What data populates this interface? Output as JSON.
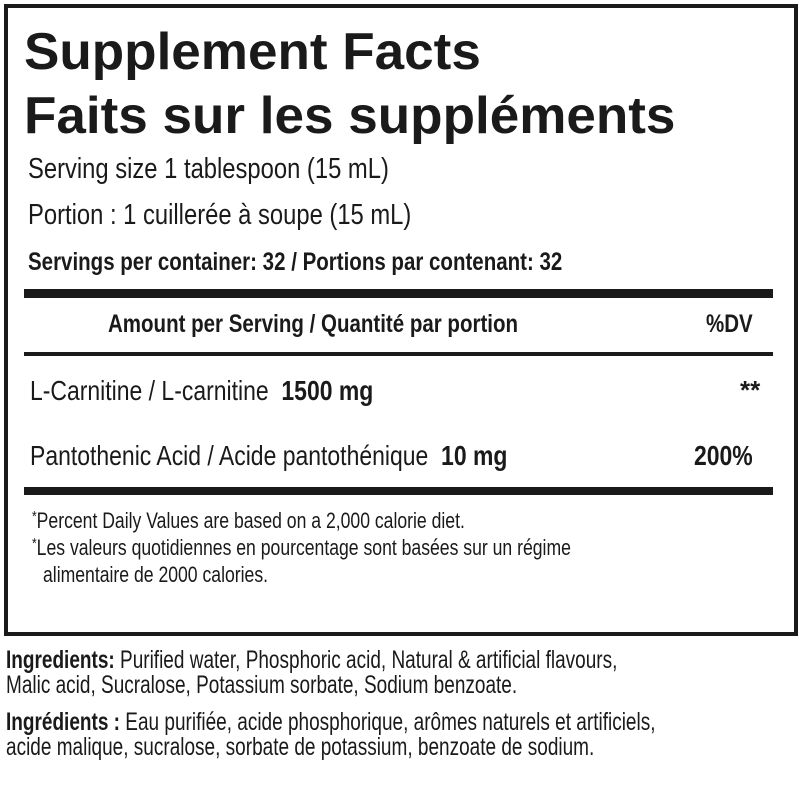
{
  "title_en": "Supplement Facts",
  "title_fr": "Faits sur les suppléments",
  "serving_size_en": "Serving size 1 tablespoon (15 mL)",
  "serving_size_fr": "Portion : 1 cuillerée à soupe (15 mL)",
  "servings_per_container": {
    "label_en": "Servings per container:",
    "value_en": "32",
    "separator": "/",
    "label_fr": "Portions par contenant:",
    "value_fr": "32"
  },
  "table_header": {
    "amount": "Amount per Serving / Quantité par portion",
    "dv": "%DV"
  },
  "rows": [
    {
      "name": "L-Carnitine / L-carnitine",
      "amount": "1500 mg",
      "dv": "**"
    },
    {
      "name": "Pantothenic Acid / Acide pantothénique",
      "amount": "10 mg",
      "dv": "200%"
    }
  ],
  "footnotes": [
    {
      "mark": "*",
      "text": "Percent Daily Values are based on a 2,000 calorie diet."
    },
    {
      "mark": "*",
      "text": "Les valeurs quotidiennes en pourcentage sont basées sur un régime",
      "text2": "alimentaire de 2000 calories."
    }
  ],
  "ingredients_en": {
    "label": "Ingredients:",
    "line1": "Purified water, Phosphoric acid, Natural & artificial flavours,",
    "line2": "Malic acid, Sucralose, Potassium sorbate, Sodium benzoate."
  },
  "ingredients_fr": {
    "label": "Ingrédients :",
    "line1": "Eau purifiée, acide phosphorique, arômes naturels et artificiels,",
    "line2": "acide malique, sucralose, sorbate de potassium, benzoate de sodium."
  }
}
